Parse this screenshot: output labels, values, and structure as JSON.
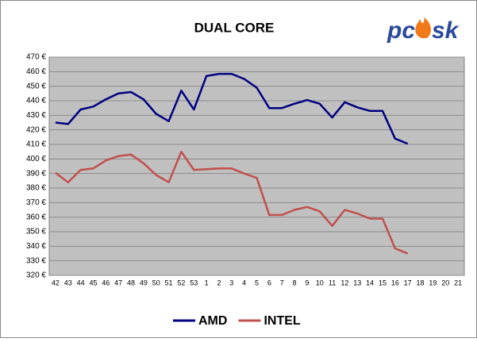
{
  "chart_data": {
    "type": "line",
    "title": "DUAL CORE",
    "logo": {
      "left": "pc",
      "right": "sk"
    },
    "categories": [
      "42",
      "43",
      "44",
      "45",
      "46",
      "47",
      "48",
      "49",
      "50",
      "51",
      "52",
      "53",
      "1",
      "2",
      "3",
      "4",
      "5",
      "6",
      "7",
      "8",
      "9",
      "10",
      "11",
      "12",
      "13",
      "14",
      "15",
      "16",
      "17",
      "18",
      "19",
      "20",
      "21"
    ],
    "series": [
      {
        "name": "AMD",
        "color": "#000080",
        "values": [
          425,
          424,
          434,
          436,
          441,
          445,
          446,
          441,
          431,
          426,
          447,
          434,
          457,
          458.5,
          458.5,
          455,
          449,
          435,
          435,
          438,
          440.5,
          438,
          428.5,
          439,
          435.5,
          433,
          433,
          414,
          410.5,
          null,
          null,
          null,
          null
        ]
      },
      {
        "name": "INTEL",
        "color": "#c0504d",
        "values": [
          390.5,
          384,
          392.5,
          393.5,
          399,
          402,
          403,
          397,
          389,
          384,
          405,
          392.5,
          393,
          393.5,
          393.5,
          390,
          387,
          361.5,
          361.5,
          365,
          367,
          364,
          354,
          365,
          362.5,
          359,
          359,
          338.5,
          335,
          null,
          null,
          null,
          null
        ]
      }
    ],
    "ylim": [
      320,
      470
    ],
    "yticks": [
      {
        "value": 320,
        "label": "320 €"
      },
      {
        "value": 330,
        "label": "330 €"
      },
      {
        "value": 340,
        "label": "340 €"
      },
      {
        "value": 350,
        "label": "350 €"
      },
      {
        "value": 360,
        "label": "360 €"
      },
      {
        "value": 370,
        "label": "370 €"
      },
      {
        "value": 380,
        "label": "380 €"
      },
      {
        "value": 390,
        "label": "390 €"
      },
      {
        "value": 400,
        "label": "400 €"
      },
      {
        "value": 410,
        "label": "410 €"
      },
      {
        "value": 420,
        "label": "420 €"
      },
      {
        "value": 430,
        "label": "430 €"
      },
      {
        "value": 440,
        "label": "440 €"
      },
      {
        "value": 450,
        "label": "450 €"
      },
      {
        "value": 460,
        "label": "460 €"
      },
      {
        "value": 470,
        "label": "470 €"
      }
    ],
    "grid": true,
    "legend": "bottom"
  }
}
